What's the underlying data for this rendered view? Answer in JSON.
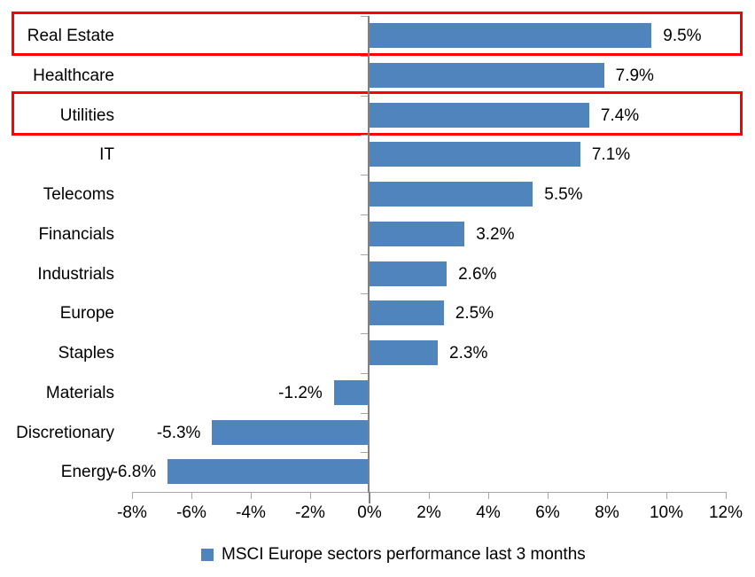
{
  "chart_data": {
    "type": "bar",
    "orientation": "horizontal",
    "categories": [
      "Real Estate",
      "Healthcare",
      "Utilities",
      "IT",
      "Telecoms",
      "Financials",
      "Industrials",
      "Europe",
      "Staples",
      "Materials",
      "Discretionary",
      "Energy"
    ],
    "values": [
      9.5,
      7.9,
      7.4,
      7.1,
      5.5,
      3.2,
      2.6,
      2.5,
      2.3,
      -1.2,
      -5.3,
      -6.8
    ],
    "data_labels": [
      "9.5%",
      "7.9%",
      "7.4%",
      "7.1%",
      "5.5%",
      "3.2%",
      "2.6%",
      "2.5%",
      "2.3%",
      "-1.2%",
      "-5.3%",
      "-6.8%"
    ],
    "x_tick_values": [
      -8,
      -6,
      -4,
      -2,
      0,
      2,
      4,
      6,
      8,
      10,
      12
    ],
    "x_tick_labels": [
      "-8%",
      "-6%",
      "-4%",
      "-2%",
      "0%",
      "2%",
      "4%",
      "6%",
      "8%",
      "10%",
      "12%"
    ],
    "xlim": [
      -8,
      12
    ],
    "grid": false,
    "legend_position": "bottom",
    "legend": {
      "label": "MSCI Europe sectors performance last 3 months"
    },
    "highlighted_categories": [
      "Real Estate",
      "Utilities"
    ],
    "colors": {
      "bar": "#4f85bc",
      "highlight_box": "#ff0000",
      "value_axis_line": "#a6a6a6",
      "category_axis_line": "#808080",
      "tick": "#a6a6a6",
      "zero_tick": "#808080",
      "text": "#000000"
    }
  }
}
